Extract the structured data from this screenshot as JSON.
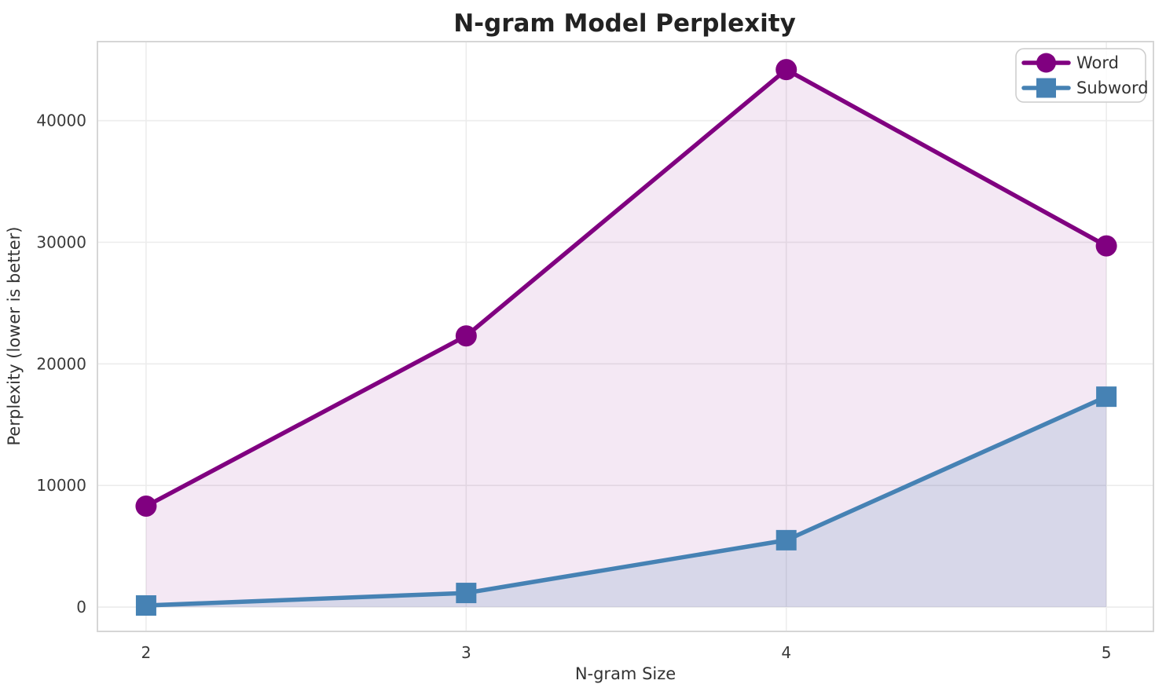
{
  "chart_data": {
    "type": "line",
    "title": "N-gram Model Perplexity",
    "xlabel": "N-gram Size",
    "ylabel": "Perplexity (lower is better)",
    "x": [
      2,
      3,
      4,
      5
    ],
    "xtick_labels": [
      "2",
      "3",
      "4",
      "5"
    ],
    "yticks": [
      0,
      10000,
      20000,
      30000,
      40000
    ],
    "ytick_labels": [
      "0",
      "10000",
      "20000",
      "30000",
      "40000"
    ],
    "xlim": [
      1.848,
      5.147
    ],
    "ylim": [
      -2000,
      46500
    ],
    "grid": true,
    "legend_position": "upper right",
    "fill_to_baseline": 0,
    "series": [
      {
        "name": "Word",
        "marker": "circle",
        "color": "#800080",
        "fill_opacity": 0.09,
        "values": [
          8300,
          22300,
          44200,
          29700
        ]
      },
      {
        "name": "Subword",
        "marker": "square",
        "color": "#4682b4",
        "fill_opacity": 0.16,
        "values": [
          130,
          1160,
          5500,
          17300
        ]
      }
    ],
    "colors": {
      "grid": "#ececec",
      "spine": "#d6d6d6",
      "legend_border": "#cccccc",
      "text": "#3a3a3a"
    }
  }
}
